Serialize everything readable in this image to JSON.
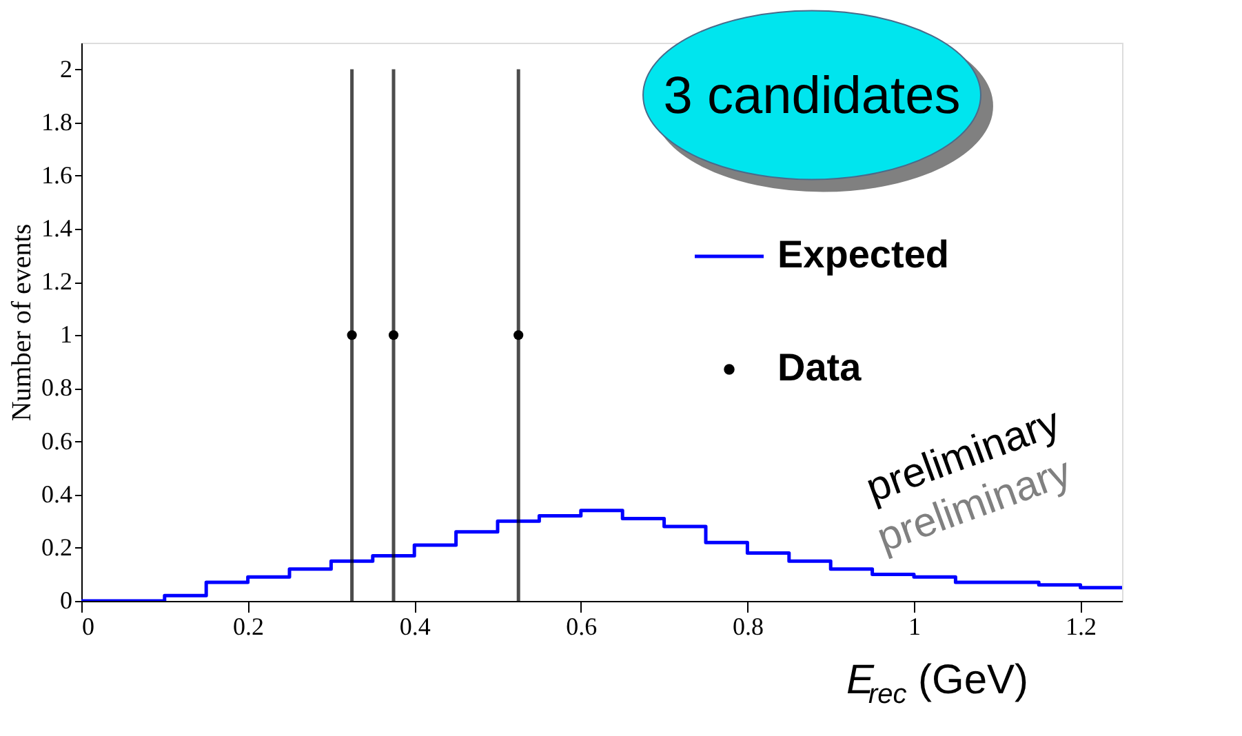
{
  "chart_data": {
    "type": "histogram",
    "xlabel": "E$_{rec}$ (GeV)",
    "ylabel": "Number of events",
    "xlim": [
      0,
      1.25
    ],
    "ylim": [
      0,
      2.1
    ],
    "xticks": [
      0,
      0.2,
      0.4,
      0.6,
      0.8,
      1,
      1.2
    ],
    "yticks": [
      0,
      0.2,
      0.4,
      0.6,
      0.8,
      1,
      1.2,
      1.4,
      1.6,
      1.8,
      2
    ],
    "grid": false,
    "legend": "right",
    "annotations": [
      "3  candidates",
      "preliminary",
      "preliminary"
    ],
    "series": [
      {
        "name": "Expected",
        "type": "histogram",
        "color": "#0000ff",
        "bins": [
          0,
          0.05,
          0.1,
          0.15,
          0.2,
          0.25,
          0.3,
          0.35,
          0.4,
          0.45,
          0.5,
          0.55,
          0.6,
          0.65,
          0.7,
          0.75,
          0.8,
          0.85,
          0.9,
          0.95,
          1.0,
          1.05,
          1.1,
          1.15,
          1.2,
          1.25
        ],
        "values": [
          0,
          0,
          0.02,
          0.07,
          0.09,
          0.12,
          0.15,
          0.17,
          0.21,
          0.26,
          0.3,
          0.32,
          0.34,
          0.31,
          0.28,
          0.22,
          0.18,
          0.15,
          0.12,
          0.1,
          0.09,
          0.07,
          0.07,
          0.06,
          0.05
        ]
      },
      {
        "name": "Data",
        "type": "scatter",
        "color": "#000000",
        "marker": "circle",
        "x": [
          0.325,
          0.375,
          0.525
        ],
        "values": [
          1,
          1,
          1
        ],
        "errors": [
          1,
          1,
          1
        ]
      }
    ]
  }
}
